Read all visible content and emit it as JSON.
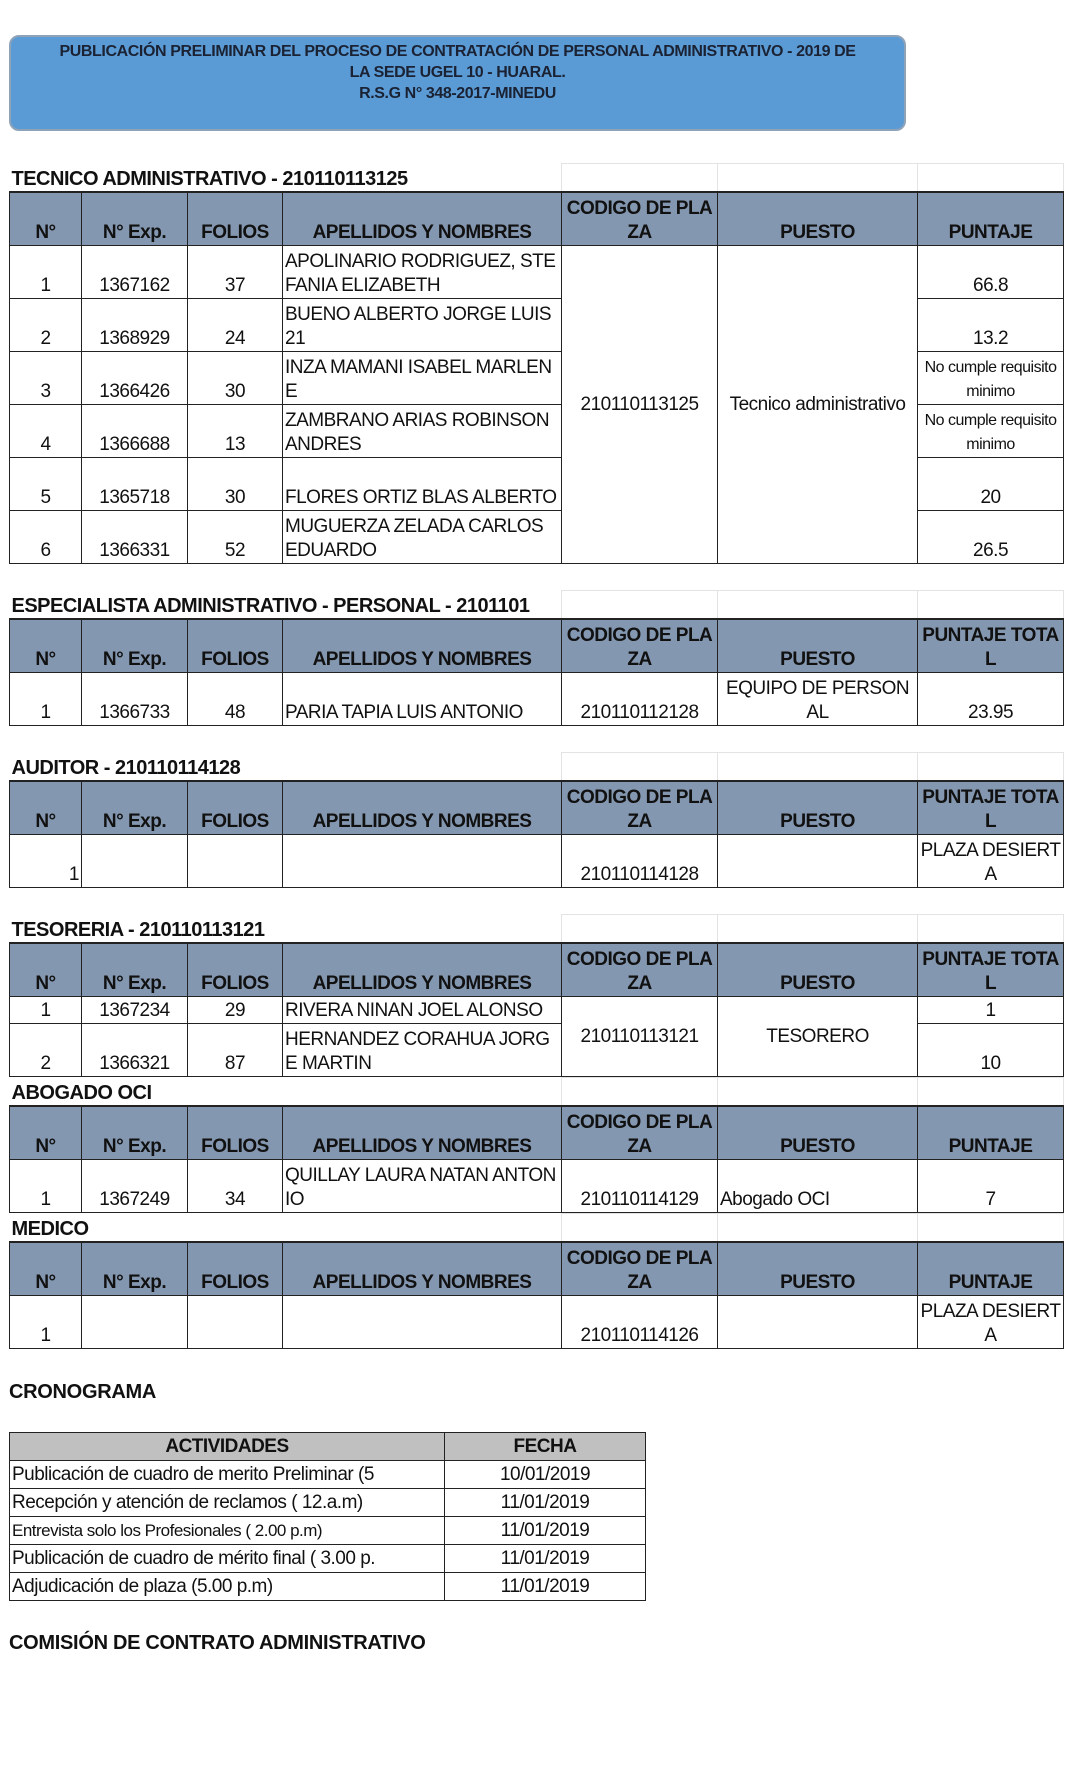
{
  "banner": {
    "line1": "PUBLICACIÓN PRELIMINAR  DEL PROCESO DE CONTRATACIÓN   DE PERSONAL ADMINISTRATIVO - 2019 DE",
    "line2": "LA SEDE UGEL 10 - HUARAL.",
    "line3": "R.S.G N° 348-2017-MINEDU",
    "color": "#5b9bd5"
  },
  "header_color": "#8497b0",
  "sections": [
    {
      "title": "TECNICO ADMINISTRATIVO - 210110113125",
      "headers": [
        "N°",
        "N° Exp.",
        "FOLIOS",
        "APELLIDOS Y NOMBRES",
        "CODIGO DE PLAZA",
        "PUESTO",
        "PUNTAJE"
      ],
      "merged": true,
      "codigo": "210110113125",
      "puesto": "Tecnico administrativo",
      "rows": [
        {
          "n": "1",
          "exp": "1367162",
          "folios": "37",
          "nombre": "APOLINARIO RODRIGUEZ, STEFANIA ELIZABETH",
          "puntaje": "66.8"
        },
        {
          "n": "2",
          "exp": "1368929",
          "folios": "24",
          "nombre": "BUENO ALBERTO JORGE LUIS21",
          "puntaje": "13.2"
        },
        {
          "n": "3",
          "exp": "1366426",
          "folios": "30",
          "nombre": "INZA MAMANI ISABEL MARLENE",
          "puntaje": "No cumple requisito minimo"
        },
        {
          "n": "4",
          "exp": "1366688",
          "folios": "13",
          "nombre": "ZAMBRANO ARIAS ROBINSON ANDRES",
          "puntaje": "No cumple requisito minimo"
        },
        {
          "n": "5",
          "exp": "1365718",
          "folios": "30",
          "nombre": "FLORES ORTIZ BLAS ALBERTO",
          "puntaje": "20"
        },
        {
          "n": "6",
          "exp": "1366331",
          "folios": "52",
          "nombre": "MUGUERZA ZELADA CARLOS EDUARDO",
          "puntaje": "26.5"
        }
      ]
    },
    {
      "title": "ESPECIALISTA ADMINISTRATIVO - PERSONAL - 2101101",
      "headers": [
        "N°",
        "N° Exp.",
        "FOLIOS",
        "APELLIDOS Y NOMBRES",
        "CODIGO DE PLAZA",
        "PUESTO",
        "PUNTAJE TOTAL"
      ],
      "merged": false,
      "rows": [
        {
          "n": "1",
          "exp": "1366733",
          "folios": "48",
          "nombre": "PARIA TAPIA LUIS ANTONIO",
          "codigo": "210110112128",
          "puesto": "EQUIPO DE PERSONAL",
          "puntaje": "23.95"
        }
      ]
    },
    {
      "title": "AUDITOR - 210110114128",
      "headers": [
        "N°",
        "N° Exp.",
        "FOLIOS",
        "APELLIDOS Y NOMBRES",
        "CODIGO DE PLAZA",
        "PUESTO",
        "PUNTAJE TOTAL"
      ],
      "merged": false,
      "rows": [
        {
          "n": "1",
          "exp": "",
          "folios": "",
          "nombre": "",
          "codigo": "210110114128",
          "puesto": "",
          "puntaje": "PLAZA DESIERTA"
        }
      ]
    },
    {
      "title": "TESORERIA - 210110113121",
      "headers": [
        "N°",
        "N° Exp.",
        "FOLIOS",
        "APELLIDOS Y NOMBRES",
        "CODIGO DE PLAZA",
        "PUESTO",
        "PUNTAJE TOTAL"
      ],
      "merged": true,
      "codigo": "210110113121",
      "puesto": "TESORERO",
      "rows": [
        {
          "n": "1",
          "exp": "1367234",
          "folios": "29",
          "nombre": "RIVERA NINAN JOEL ALONSO",
          "puntaje": "1"
        },
        {
          "n": "2",
          "exp": "1366321",
          "folios": "87",
          "nombre": "HERNANDEZ CORAHUA JORGE MARTIN",
          "puntaje": "10"
        }
      ]
    },
    {
      "title": "ABOGADO OCI",
      "headers": [
        "N°",
        "N° Exp.",
        "FOLIOS",
        "APELLIDOS Y NOMBRES",
        "CODIGO DE PLAZA",
        "PUESTO",
        "PUNTAJE"
      ],
      "merged": false,
      "rows": [
        {
          "n": "1",
          "exp": "1367249",
          "folios": "34",
          "nombre": "QUILLAY LAURA NATAN ANTONIO",
          "codigo": "210110114129",
          "puesto": "Abogado OCI",
          "puntaje": "7"
        }
      ]
    },
    {
      "title": "MEDICO",
      "headers": [
        "N°",
        "N° Exp.",
        "FOLIOS",
        "APELLIDOS Y NOMBRES",
        "CODIGO DE PLAZA",
        "PUESTO",
        "PUNTAJE"
      ],
      "merged": false,
      "rows": [
        {
          "n": "1",
          "exp": "",
          "folios": "",
          "nombre": "",
          "codigo": "210110114126",
          "puesto": "",
          "puntaje": "PLAZA DESIERTA"
        }
      ]
    }
  ],
  "cronograma": {
    "title": "CRONOGRAMA",
    "headers": [
      "ACTIVIDADES",
      "FECHA"
    ],
    "header_color": "#c0c0c0",
    "rows": [
      {
        "actividad": "Publicación de cuadro de merito Preliminar (5",
        "fecha": "10/01/2019"
      },
      {
        "actividad": "Recepción y atención de reclamos ( 12.a.m)",
        "fecha": "11/01/2019"
      },
      {
        "actividad": "Entrevista solo los Profesionales ( 2.00 p.m)",
        "fecha": "11/01/2019"
      },
      {
        "actividad": "Publicación de cuadro de mérito final ( 3.00 p.",
        "fecha": "11/01/2019"
      },
      {
        "actividad": "Adjudicación de plaza (5.00 p.m)",
        "fecha": "11/01/2019"
      }
    ]
  },
  "footer": {
    "title": "COMISIÓN DE CONTRATO ADMINISTRATIVO"
  }
}
